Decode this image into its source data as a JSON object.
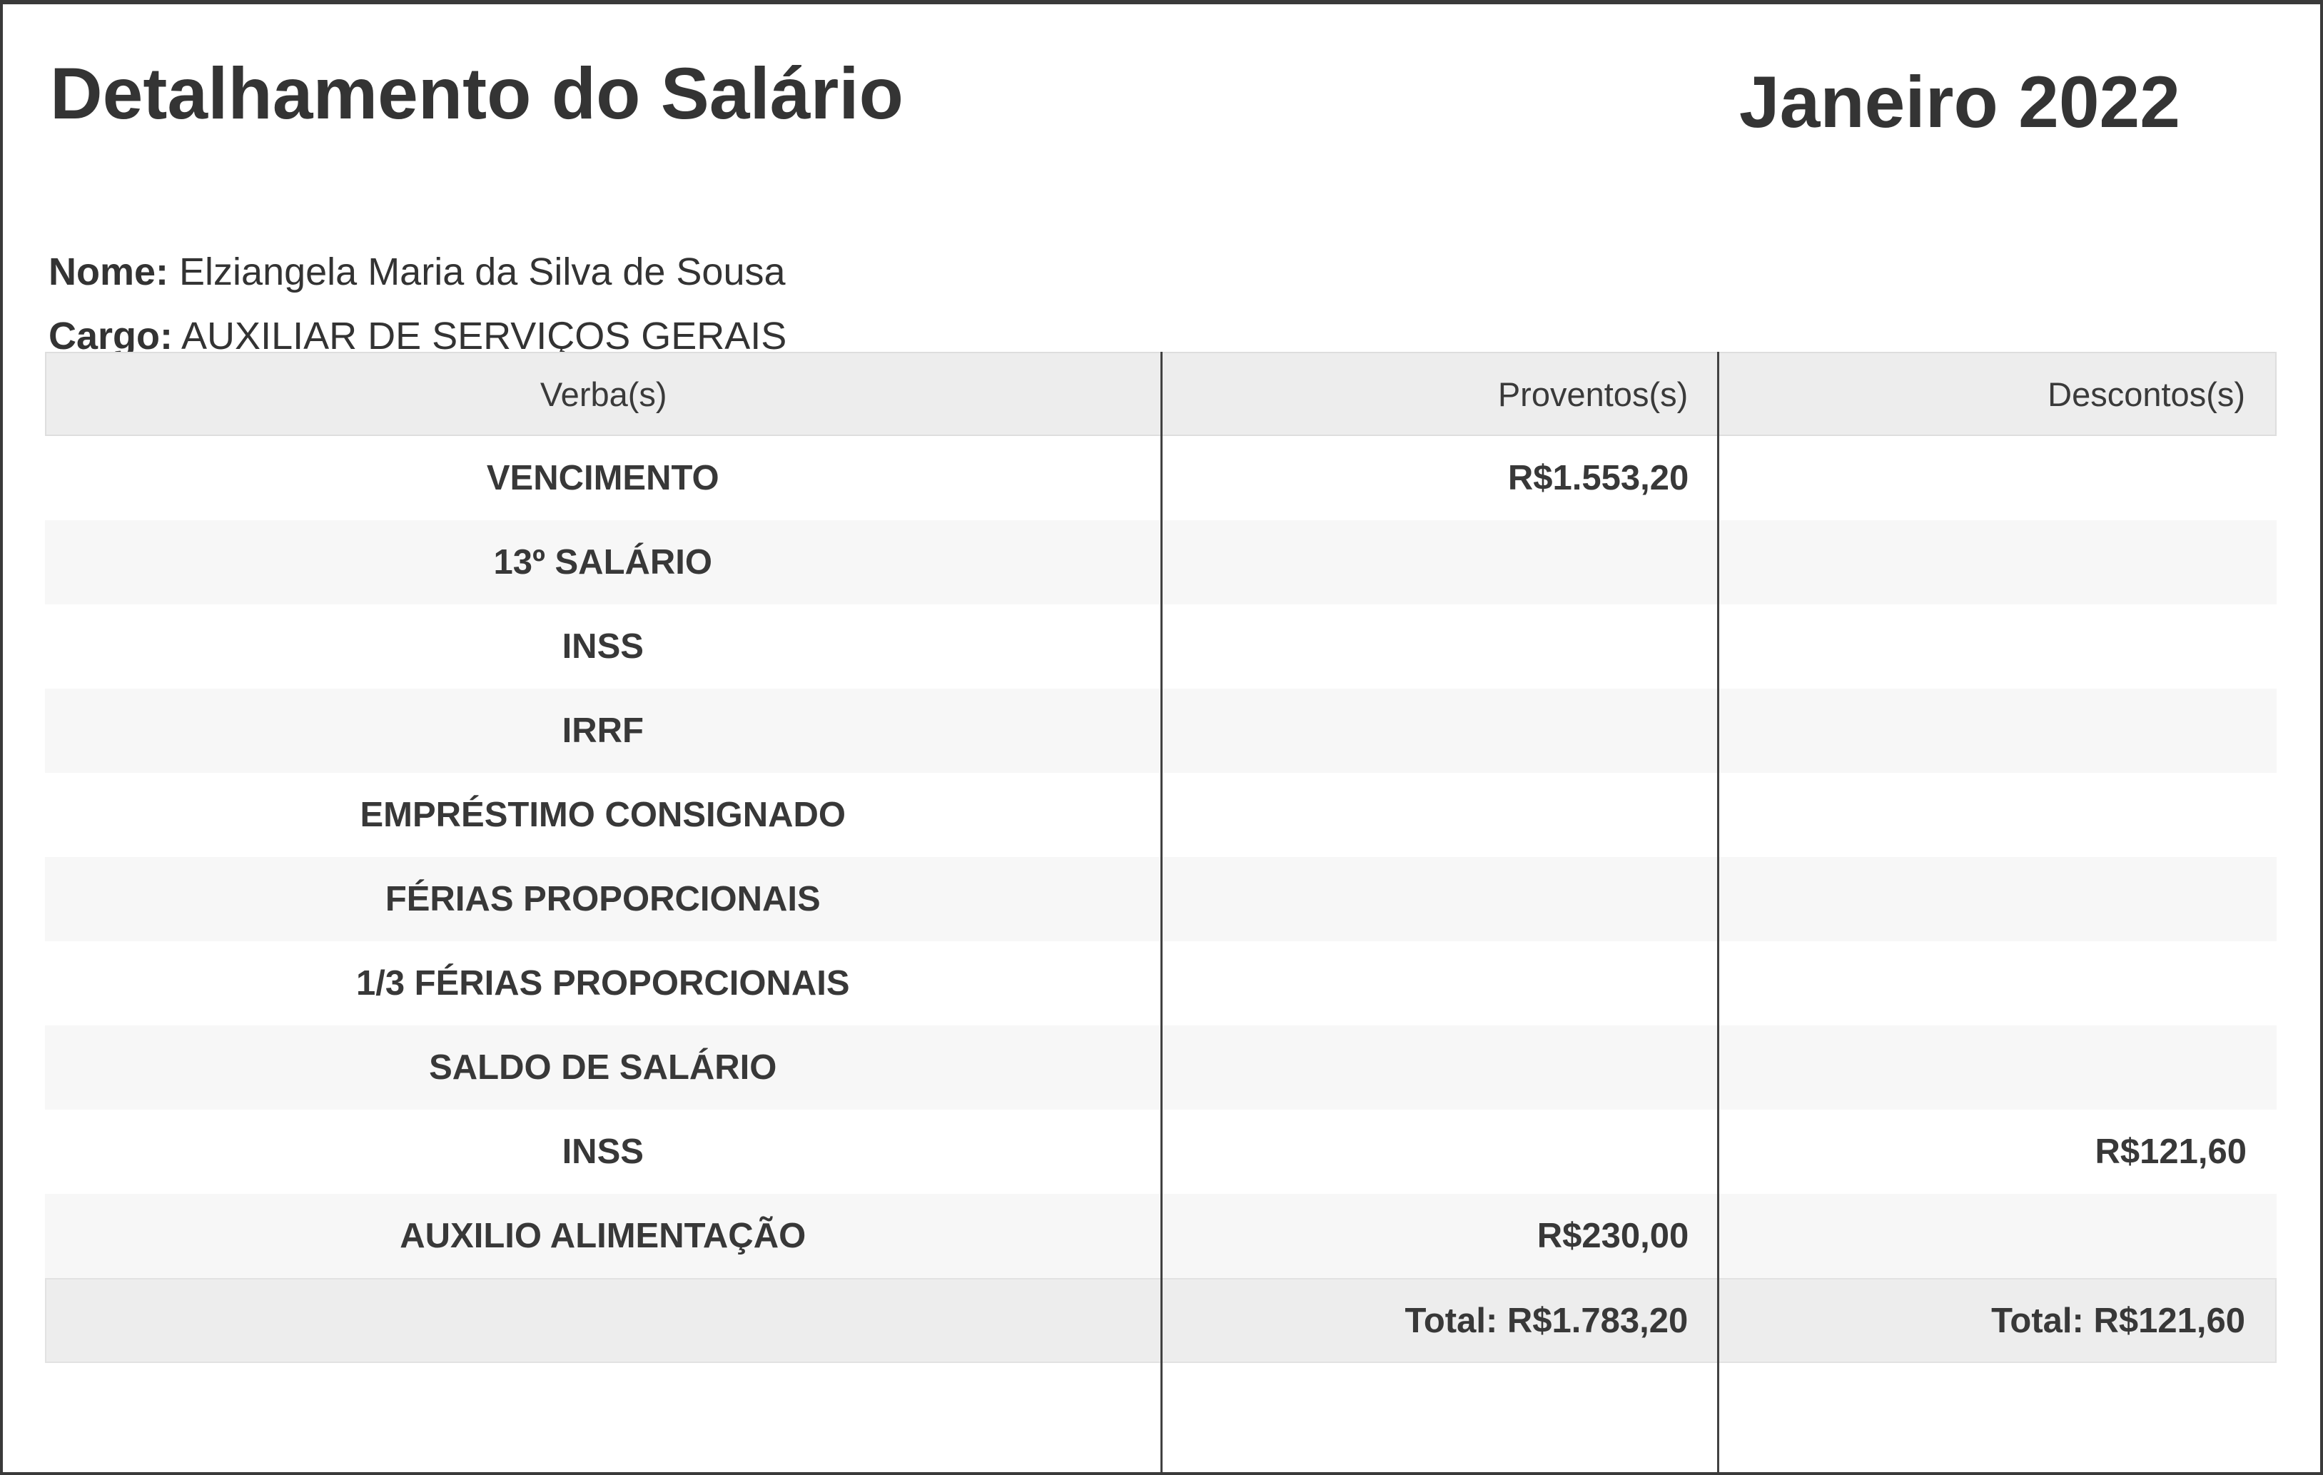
{
  "header": {
    "title": "Detalhamento do Salário",
    "period": "Janeiro 2022"
  },
  "employee": {
    "name_label": "Nome:",
    "name": "Elziangela Maria da Silva de Sousa",
    "role_label": "Cargo:",
    "role": "AUXILIAR DE SERVIÇOS GERAIS"
  },
  "table": {
    "columns": [
      "Verba(s)",
      "Proventos(s)",
      "Descontos(s)"
    ],
    "rows": [
      {
        "verba": "VENCIMENTO",
        "proventos": "R$1.553,20",
        "descontos": ""
      },
      {
        "verba": "13º SALÁRIO",
        "proventos": "",
        "descontos": ""
      },
      {
        "verba": "INSS",
        "proventos": "",
        "descontos": ""
      },
      {
        "verba": "IRRF",
        "proventos": "",
        "descontos": ""
      },
      {
        "verba": "EMPRÉSTIMO CONSIGNADO",
        "proventos": "",
        "descontos": ""
      },
      {
        "verba": "FÉRIAS PROPORCIONAIS",
        "proventos": "",
        "descontos": ""
      },
      {
        "verba": "1/3 FÉRIAS PROPORCIONAIS",
        "proventos": "",
        "descontos": ""
      },
      {
        "verba": "SALDO DE SALÁRIO",
        "proventos": "",
        "descontos": ""
      },
      {
        "verba": "INSS",
        "proventos": "",
        "descontos": "R$121,60"
      },
      {
        "verba": "AUXILIO ALIMENTAÇÃO",
        "proventos": "R$230,00",
        "descontos": ""
      }
    ],
    "totals": {
      "proventos": "Total: R$1.783,20",
      "descontos": "Total: R$121,60"
    }
  },
  "colors": {
    "text": "#343434",
    "header_bg": "#ededed",
    "alt_row_bg": "#f7f7f7",
    "total_row_bg": "#ededed",
    "divider": "#424242",
    "page_border": "#3a3a3a"
  }
}
